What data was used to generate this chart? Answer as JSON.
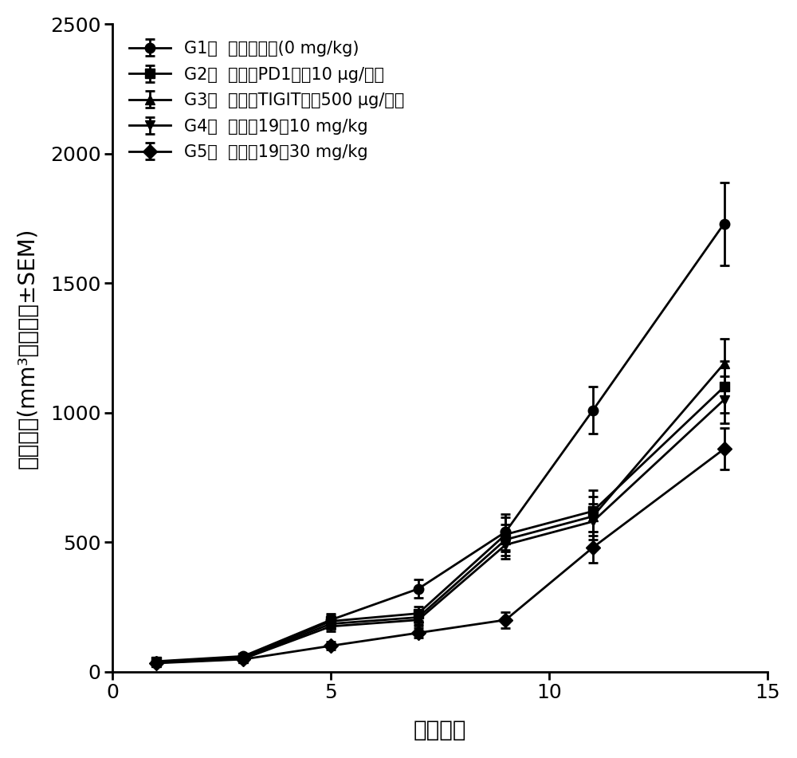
{
  "title": "",
  "xlabel": "处理天数",
  "ylabel": "肿瘴体积(mm³，平均值±SEM)",
  "x": [
    1,
    3,
    5,
    7,
    9,
    11,
    14
  ],
  "groups": {
    "G1": {
      "label": "G1：  媒介物对照(0 mg/kg)",
      "marker": "o",
      "y": [
        40,
        60,
        200,
        320,
        540,
        1010,
        1730
      ],
      "yerr": [
        8,
        10,
        25,
        35,
        70,
        90,
        160
      ]
    },
    "G2": {
      "label": "G2：  抗小鼠PD1抗体10 μg/动物",
      "marker": "s",
      "y": [
        38,
        55,
        195,
        225,
        530,
        620,
        1100
      ],
      "yerr": [
        7,
        9,
        22,
        28,
        65,
        80,
        100
      ]
    },
    "G3": {
      "label": "G3：  抗小鼠TIGIT抗体500 μg/动物",
      "marker": "^",
      "y": [
        36,
        52,
        185,
        210,
        510,
        600,
        1190
      ],
      "yerr": [
        6,
        8,
        20,
        25,
        60,
        75,
        95
      ]
    },
    "G4": {
      "label": "G4：  化合爂19，10 mg/kg",
      "marker": "v",
      "y": [
        35,
        50,
        175,
        200,
        490,
        580,
        1050
      ],
      "yerr": [
        5,
        7,
        18,
        22,
        55,
        70,
        90
      ]
    },
    "G5": {
      "label": "G5：  化合爂19，30 mg/kg",
      "marker": "D",
      "y": [
        33,
        48,
        100,
        150,
        200,
        480,
        860
      ],
      "yerr": [
        4,
        6,
        15,
        18,
        30,
        60,
        80
      ]
    }
  },
  "xlim": [
    0,
    15
  ],
  "ylim": [
    0,
    2500
  ],
  "xticks": [
    0,
    5,
    10,
    15
  ],
  "yticks": [
    0,
    500,
    1000,
    1500,
    2000,
    2500
  ],
  "line_color": "black",
  "marker_size": 9,
  "line_width": 2.0,
  "capsize": 4,
  "legend_fontsize": 15,
  "axis_label_fontsize": 20,
  "tick_fontsize": 18
}
